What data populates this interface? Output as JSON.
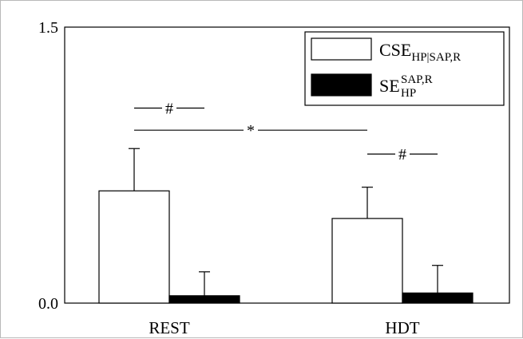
{
  "chart_data": {
    "type": "bar",
    "categories": [
      "REST",
      "HDT"
    ],
    "ylim": [
      0,
      1.5
    ],
    "yticks": [
      "1.5",
      "0.0"
    ],
    "series": [
      {
        "name": "CSE_HP|SAP,R",
        "values": [
          0.61,
          0.46
        ],
        "errors": [
          0.23,
          0.17
        ],
        "fill": "#ffffff"
      },
      {
        "name": "SE_HP^SAP,R",
        "values": [
          0.04,
          0.055
        ],
        "errors": [
          0.13,
          0.15
        ],
        "fill": "#000000"
      }
    ],
    "legend": {
      "placement": "top-right",
      "entries": [
        {
          "base": "CSE",
          "sub": "HP|SAP,R",
          "sup": ""
        },
        {
          "base": "SE",
          "sub": "HP",
          "sup": "SAP,R"
        }
      ]
    },
    "annotations": [
      {
        "text": "#",
        "from": "REST-CSE",
        "to": "REST-SE",
        "y": 1.06
      },
      {
        "text": "*",
        "from": "REST-CSE",
        "to": "HDT-CSE",
        "y": 0.94
      },
      {
        "text": "#",
        "from": "HDT-CSE",
        "to": "HDT-SE",
        "y": 0.81
      }
    ]
  }
}
